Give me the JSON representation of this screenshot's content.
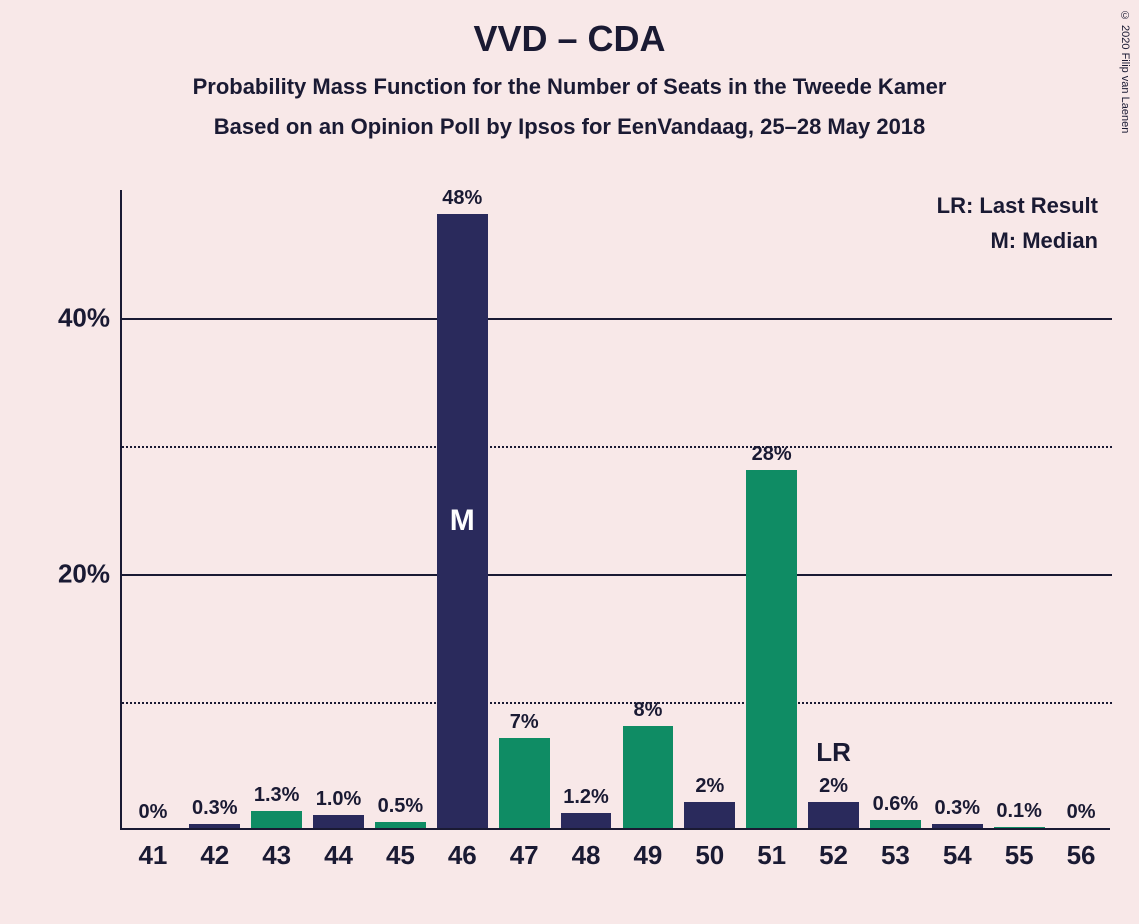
{
  "copyright": "© 2020 Filip van Laenen",
  "title": "VVD – CDA",
  "subtitle1": "Probability Mass Function for the Number of Seats in the Tweede Kamer",
  "subtitle2": "Based on an Opinion Poll by Ipsos for EenVandaag, 25–28 May 2018",
  "legend": {
    "line1": "LR: Last Result",
    "line2": "M: Median"
  },
  "chart": {
    "type": "bar",
    "background_color": "#f8e8e8",
    "axis_color": "#1a1a33",
    "text_color": "#1a1a33",
    "colors": {
      "green": "#0f8c64",
      "navy": "#2a2a5c"
    },
    "ylim": [
      0,
      50
    ],
    "y_major_ticks": [
      20,
      40
    ],
    "y_minor_ticks": [
      10,
      30
    ],
    "y_tick_labels": {
      "20": "20%",
      "40": "40%"
    },
    "bar_width_ratio": 0.82,
    "categories": [
      41,
      42,
      43,
      44,
      45,
      46,
      47,
      48,
      49,
      50,
      51,
      52,
      53,
      54,
      55,
      56
    ],
    "bars": [
      {
        "x": 41,
        "value": 0.0,
        "label": "0%",
        "color": "green"
      },
      {
        "x": 42,
        "value": 0.3,
        "label": "0.3%",
        "color": "navy"
      },
      {
        "x": 43,
        "value": 1.3,
        "label": "1.3%",
        "color": "green"
      },
      {
        "x": 44,
        "value": 1.0,
        "label": "1.0%",
        "color": "navy"
      },
      {
        "x": 45,
        "value": 0.5,
        "label": "0.5%",
        "color": "green"
      },
      {
        "x": 46,
        "value": 48,
        "label": "48%",
        "color": "navy",
        "inner": "M"
      },
      {
        "x": 47,
        "value": 7,
        "label": "7%",
        "color": "green"
      },
      {
        "x": 48,
        "value": 1.2,
        "label": "1.2%",
        "color": "navy"
      },
      {
        "x": 49,
        "value": 8,
        "label": "8%",
        "color": "green"
      },
      {
        "x": 50,
        "value": 2,
        "label": "2%",
        "color": "navy"
      },
      {
        "x": 51,
        "value": 28,
        "label": "28%",
        "color": "green"
      },
      {
        "x": 52,
        "value": 2,
        "label": "2%",
        "color": "navy"
      },
      {
        "x": 53,
        "value": 0.6,
        "label": "0.6%",
        "color": "green"
      },
      {
        "x": 54,
        "value": 0.3,
        "label": "0.3%",
        "color": "navy"
      },
      {
        "x": 55,
        "value": 0.1,
        "label": "0.1%",
        "color": "green"
      },
      {
        "x": 56,
        "value": 0.0,
        "label": "0%",
        "color": "navy"
      }
    ],
    "lr_marker": {
      "x": 52,
      "label": "LR"
    }
  }
}
